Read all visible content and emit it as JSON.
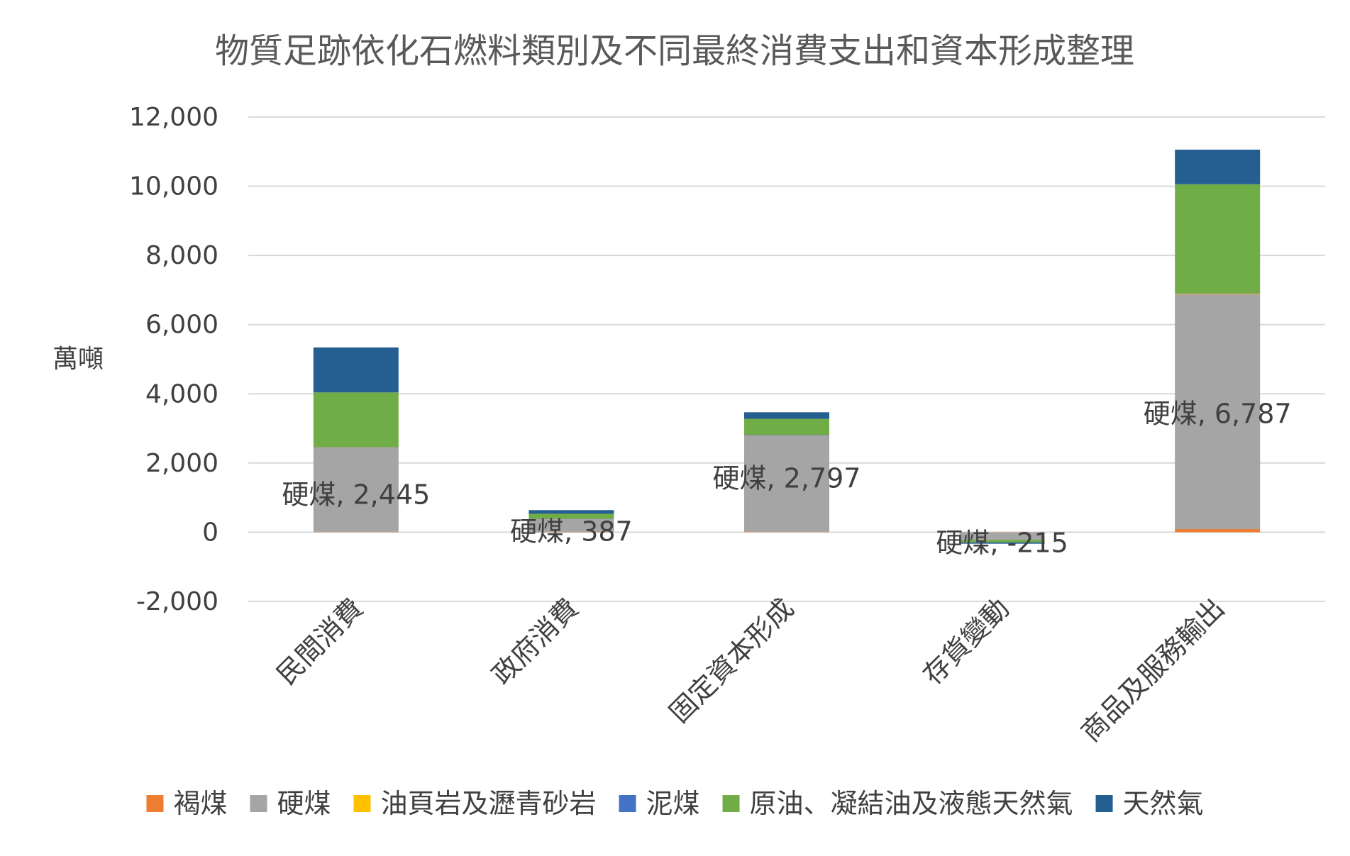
{
  "chart_data": {
    "type": "bar",
    "stacked": true,
    "title": "物質足跡依化石燃料類別及不同最終消費支出和資本形成整理",
    "ylabel": "萬噸",
    "xlabel": "",
    "ylim": [
      -2000,
      12000
    ],
    "ytick_step": 2000,
    "grid": true,
    "legend_position": "bottom",
    "categories": [
      "民間消費",
      "政府消費",
      "固定資本形成",
      "存貨變動",
      "商品及服務輸出"
    ],
    "series": [
      {
        "name": "褐煤",
        "color": "#ED7D31",
        "values": [
          10,
          3,
          12,
          -5,
          90
        ]
      },
      {
        "name": "硬煤",
        "color": "#A5A5A5",
        "values": [
          2445,
          387,
          2797,
          -215,
          6787
        ]
      },
      {
        "name": "油頁岩及瀝青砂岩",
        "color": "#FFC000",
        "values": [
          5,
          2,
          5,
          -2,
          20
        ]
      },
      {
        "name": "泥煤",
        "color": "#4472C4",
        "values": [
          3,
          1,
          3,
          -1,
          10
        ]
      },
      {
        "name": "原油、凝結油及液態天然氣",
        "color": "#70AD47",
        "values": [
          1577,
          140,
          460,
          -70,
          3150
        ]
      },
      {
        "name": "天然氣",
        "color": "#255E91",
        "values": [
          1300,
          105,
          190,
          -40,
          1000
        ]
      }
    ],
    "data_labels": [
      {
        "series": "硬煤",
        "category": "民間消費",
        "text": "硬煤, 2,445"
      },
      {
        "series": "硬煤",
        "category": "政府消費",
        "text": "硬煤, 387"
      },
      {
        "series": "硬煤",
        "category": "固定資本形成",
        "text": "硬煤, 2,797"
      },
      {
        "series": "硬煤",
        "category": "存貨變動",
        "text": "硬煤, -215"
      },
      {
        "series": "硬煤",
        "category": "商品及服務輸出",
        "text": "硬煤, 6,787"
      }
    ],
    "tick_labels": [
      "-2,000",
      "0",
      "2,000",
      "4,000",
      "6,000",
      "8,000",
      "10,000",
      "12,000"
    ]
  },
  "colors": {
    "grid": "#D9D9D9",
    "text": "#404040",
    "title": "#595959"
  }
}
